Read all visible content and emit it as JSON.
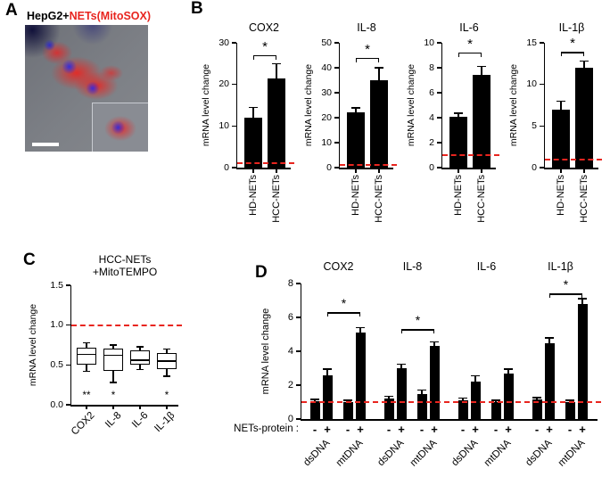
{
  "colors": {
    "reference_red": "#e8251f",
    "bar_black": "#000000",
    "mitosox_red": "#e8251f",
    "nuclei_blue": "#2d2de1"
  },
  "panels": {
    "a": {
      "label": "A",
      "title_prefix": "HepG2+",
      "title_highlight": "NETs(MitoSOX)"
    },
    "b": {
      "label": "B"
    },
    "c": {
      "label": "C"
    },
    "d": {
      "label": "D"
    }
  },
  "chart_data": [
    {
      "id": "B-COX2",
      "type": "bar",
      "title": "COX2",
      "ylabel": "mRNA level change",
      "ylim": [
        0,
        30
      ],
      "yticks": [
        0,
        10,
        20,
        30
      ],
      "categories": [
        "HD-NETs",
        "HCC-NETs"
      ],
      "values": [
        12,
        21.5
      ],
      "errors": [
        2.5,
        3.5
      ],
      "ref_line": 1,
      "significance": [
        {
          "from": 0,
          "to": 1,
          "label": "*",
          "y": 27
        }
      ]
    },
    {
      "id": "B-IL8",
      "type": "bar",
      "title": "IL-8",
      "ylabel": "mRNA level change",
      "ylim": [
        0,
        50
      ],
      "yticks": [
        0,
        10,
        20,
        30,
        40,
        50
      ],
      "categories": [
        "HD-NETs",
        "HCC-NETs"
      ],
      "values": [
        22,
        35
      ],
      "errors": [
        2,
        5
      ],
      "ref_line": 1,
      "significance": [
        {
          "from": 0,
          "to": 1,
          "label": "*",
          "y": 44
        }
      ]
    },
    {
      "id": "B-IL6",
      "type": "bar",
      "title": "IL-6",
      "ylabel": "mRNA level change",
      "ylim": [
        0,
        10
      ],
      "yticks": [
        0,
        2,
        4,
        6,
        8,
        10
      ],
      "categories": [
        "HD-NETs",
        "HCC-NETs"
      ],
      "values": [
        4.1,
        7.4
      ],
      "errors": [
        0.25,
        0.7
      ],
      "ref_line": 1,
      "significance": [
        {
          "from": 0,
          "to": 1,
          "label": "*",
          "y": 9.2
        }
      ]
    },
    {
      "id": "B-IL1b",
      "type": "bar",
      "title": "IL-1β",
      "ylabel": "mRNA level change",
      "ylim": [
        0,
        15
      ],
      "yticks": [
        0,
        5,
        10,
        15
      ],
      "categories": [
        "HD-NETs",
        "HCC-NETs"
      ],
      "values": [
        7,
        12
      ],
      "errors": [
        1,
        0.8
      ],
      "ref_line": 1,
      "significance": [
        {
          "from": 0,
          "to": 1,
          "label": "*",
          "y": 13.9
        }
      ]
    },
    {
      "id": "C-MitoTEMPO",
      "type": "box",
      "title_lines": [
        "HCC-NETs",
        "+MitoTEMPO"
      ],
      "ylabel": "mRNA level change",
      "ylim": [
        0,
        1.5
      ],
      "yticks": [
        0,
        0.5,
        1,
        1.5
      ],
      "ytick_labels": [
        "0.0",
        "0.5",
        "1.0",
        "1.5"
      ],
      "categories": [
        "COX2",
        "IL-8",
        "IL-6",
        "IL-1β"
      ],
      "boxes": [
        {
          "whisker_low": 0.42,
          "q1": 0.5,
          "median": 0.63,
          "q3": 0.72,
          "whisker_high": 0.78,
          "sig": "**"
        },
        {
          "whisker_low": 0.28,
          "q1": 0.42,
          "median": 0.62,
          "q3": 0.7,
          "whisker_high": 0.75,
          "sig": "*"
        },
        {
          "whisker_low": 0.44,
          "q1": 0.5,
          "median": 0.56,
          "q3": 0.68,
          "whisker_high": 0.73,
          "sig": ""
        },
        {
          "whisker_low": 0.36,
          "q1": 0.45,
          "median": 0.55,
          "q3": 0.65,
          "whisker_high": 0.7,
          "sig": "*"
        }
      ],
      "ref_line": 1
    },
    {
      "id": "D-DNA",
      "type": "grouped_bar",
      "ylabel": "mRNA level change",
      "ylim": [
        0,
        8
      ],
      "yticks": [
        0,
        2,
        4,
        6,
        8
      ],
      "group_titles": [
        "COX2",
        "IL-8",
        "IL-6",
        "IL-1β"
      ],
      "subgroups": [
        "dsDNA",
        "mtDNA"
      ],
      "condition_row_label": "NETs-protein :",
      "condition_labels": [
        "-",
        "+",
        "-",
        "+"
      ],
      "series_values": [
        [
          1.05,
          2.6,
          1.0,
          5.1
        ],
        [
          1.2,
          3.0,
          1.45,
          4.3
        ],
        [
          1.1,
          2.2,
          1.0,
          2.7
        ],
        [
          1.15,
          4.5,
          1.0,
          6.8
        ]
      ],
      "series_errors": [
        [
          0.1,
          0.35,
          0.1,
          0.3
        ],
        [
          0.15,
          0.25,
          0.25,
          0.25
        ],
        [
          0.15,
          0.35,
          0.1,
          0.25
        ],
        [
          0.12,
          0.3,
          0.1,
          0.3
        ]
      ],
      "ref_line": 1,
      "significance": [
        {
          "group": 0,
          "from": 1,
          "to": 3,
          "label": "*",
          "y": 6.3
        },
        {
          "group": 1,
          "from": 1,
          "to": 3,
          "label": "*",
          "y": 5.3
        },
        {
          "group": 3,
          "from": 1,
          "to": 3,
          "label": "*",
          "y": 7.4
        }
      ]
    }
  ]
}
